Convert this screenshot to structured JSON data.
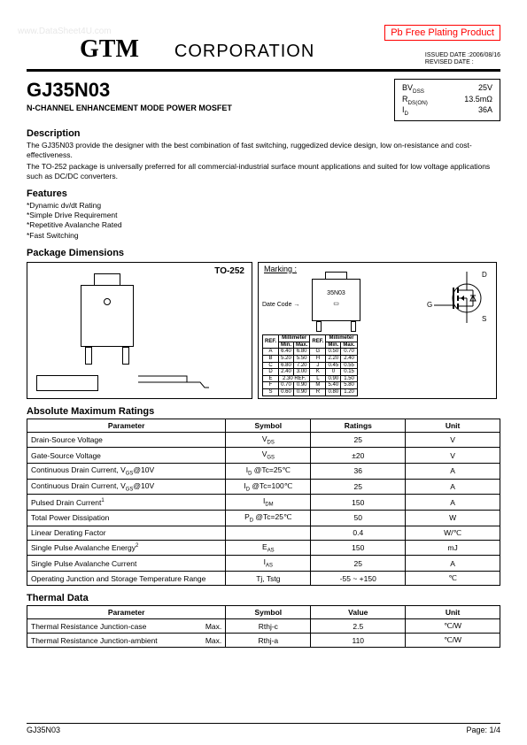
{
  "watermark": "www.DataSheet4U.com",
  "pb_free": "Pb Free Plating Product",
  "logo": "GTM",
  "corporation": "CORPORATION",
  "issued_label": "ISSUED DATE",
  "issued_date": ":2006/08/16",
  "revised_label": "REVISED DATE",
  "revised_date": ":",
  "part_number": "GJ35N03",
  "subtitle": "N-CHANNEL ENHANCEMENT MODE POWER MOSFET",
  "spec_box": {
    "bvdss_label": "BVDSS",
    "bvdss_val": "25V",
    "rdson_label": "RDS(ON)",
    "rdson_val": "13.5mΩ",
    "id_label": "ID",
    "id_val": "36A"
  },
  "desc_heading": "Description",
  "desc_p1": "The GJ35N03 provide the designer with the best combination of fast switching, ruggedized device design, low on-resistance and cost-effectiveness.",
  "desc_p2": "The TO-252 package is universally preferred for all commercial-industrial surface mount applications and suited for low voltage applications such as DC/DC converters.",
  "features_heading": "Features",
  "features": [
    "*Dynamic dv/dt Rating",
    "*Simple Drive Requirement",
    "*Repetitive Avalanche Rated",
    "*Fast Switching"
  ],
  "pkg_heading": "Package Dimensions",
  "pkg_label": "TO-252",
  "marking_label": "Marking :",
  "marking_text": "35N03",
  "datecode": "Date Code",
  "schematic_labels": {
    "d": "D",
    "g": "G",
    "s": "S"
  },
  "dim_header": {
    "ref": "REF.",
    "mm": "Millimeter",
    "min": "Min.",
    "max": "Max."
  },
  "dims_left": [
    [
      "A",
      "6.40",
      "6.80"
    ],
    [
      "B",
      "5.20",
      "5.50"
    ],
    [
      "C",
      "6.80",
      "7.20"
    ],
    [
      "D",
      "2.40",
      "3.00"
    ],
    [
      "E",
      "2.30 REF.",
      ""
    ],
    [
      "F",
      "0.70",
      "0.90"
    ],
    [
      "S",
      "0.60",
      "0.90"
    ]
  ],
  "dims_right": [
    [
      "G",
      "0.50",
      "0.70"
    ],
    [
      "H",
      "2.20",
      "2.40"
    ],
    [
      "J",
      "0.45",
      "0.55"
    ],
    [
      "K",
      "0",
      "0.15"
    ],
    [
      "L",
      "0.90",
      "1.50"
    ],
    [
      "M",
      "5.40",
      "5.80"
    ],
    [
      "R",
      "0.80",
      "1.20"
    ]
  ],
  "amr_heading": "Absolute Maximum Ratings",
  "amr_cols": [
    "Parameter",
    "Symbol",
    "Ratings",
    "Unit"
  ],
  "amr_rows": [
    {
      "p": "Drain-Source Voltage",
      "s": "V<sub>DS</sub>",
      "r": "25",
      "u": "V"
    },
    {
      "p": "Gate-Source Voltage",
      "s": "V<sub>GS</sub>",
      "r": "±20",
      "u": "V"
    },
    {
      "p": "Continuous Drain Current, V<sub>GS</sub>@10V",
      "s": "I<sub>D</sub> @Tc=25℃",
      "r": "36",
      "u": "A"
    },
    {
      "p": "Continuous Drain Current, V<sub>GS</sub>@10V",
      "s": "I<sub>D</sub> @Tc=100℃",
      "r": "25",
      "u": "A"
    },
    {
      "p": "Pulsed Drain Current<sup>1</sup>",
      "s": "I<sub>DM</sub>",
      "r": "150",
      "u": "A"
    },
    {
      "p": "Total Power Dissipation",
      "s": "P<sub>D</sub> @Tc=25℃",
      "r": "50",
      "u": "W"
    },
    {
      "p": "Linear Derating Factor",
      "s": "",
      "r": "0.4",
      "u": "W/℃"
    },
    {
      "p": "Single Pulse Avalanche Energy<sup>2</sup>",
      "s": "E<sub>AS</sub>",
      "r": "150",
      "u": "mJ"
    },
    {
      "p": "Single Pulse Avalanche Current",
      "s": "I<sub>AS</sub>",
      "r": "25",
      "u": "A"
    },
    {
      "p": "Operating Junction and Storage Temperature Range",
      "s": "Tj, Tstg",
      "r": "-55 ~ +150",
      "u": "℃"
    }
  ],
  "thermal_heading": "Thermal Data",
  "thermal_cols": [
    "Parameter",
    "Symbol",
    "Value",
    "Unit"
  ],
  "thermal_rows": [
    {
      "p": "Thermal Resistance Junction-case",
      "m": "Max.",
      "s": "Rthj-c",
      "v": "2.5",
      "u": "℃/W"
    },
    {
      "p": "Thermal Resistance Junction-ambient",
      "m": "Max.",
      "s": "Rthj-a",
      "v": "110",
      "u": "℃/W"
    }
  ],
  "footer_left": "GJ35N03",
  "footer_right": "Page: 1/4",
  "colors": {
    "pb_free_border": "#ff0000",
    "text": "#000000",
    "bg": "#ffffff",
    "watermark": "#e8e8e8"
  }
}
